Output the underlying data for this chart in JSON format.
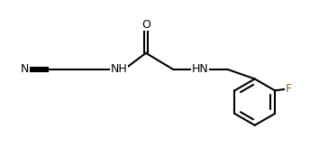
{
  "bg_color": "#ffffff",
  "line_color": "#000000",
  "label_color_black": "#000000",
  "label_color_dark": "#1a1a1a",
  "atoms": {
    "N_cyano": "N",
    "C_triple1": "C",
    "C_chain1": "C",
    "C_chain2": "C",
    "NH1": "NH",
    "C_carbonyl": "C",
    "O": "O",
    "C_alpha": "C",
    "NH2": "HN",
    "C_benzyl": "C",
    "F": "F"
  },
  "title": ""
}
